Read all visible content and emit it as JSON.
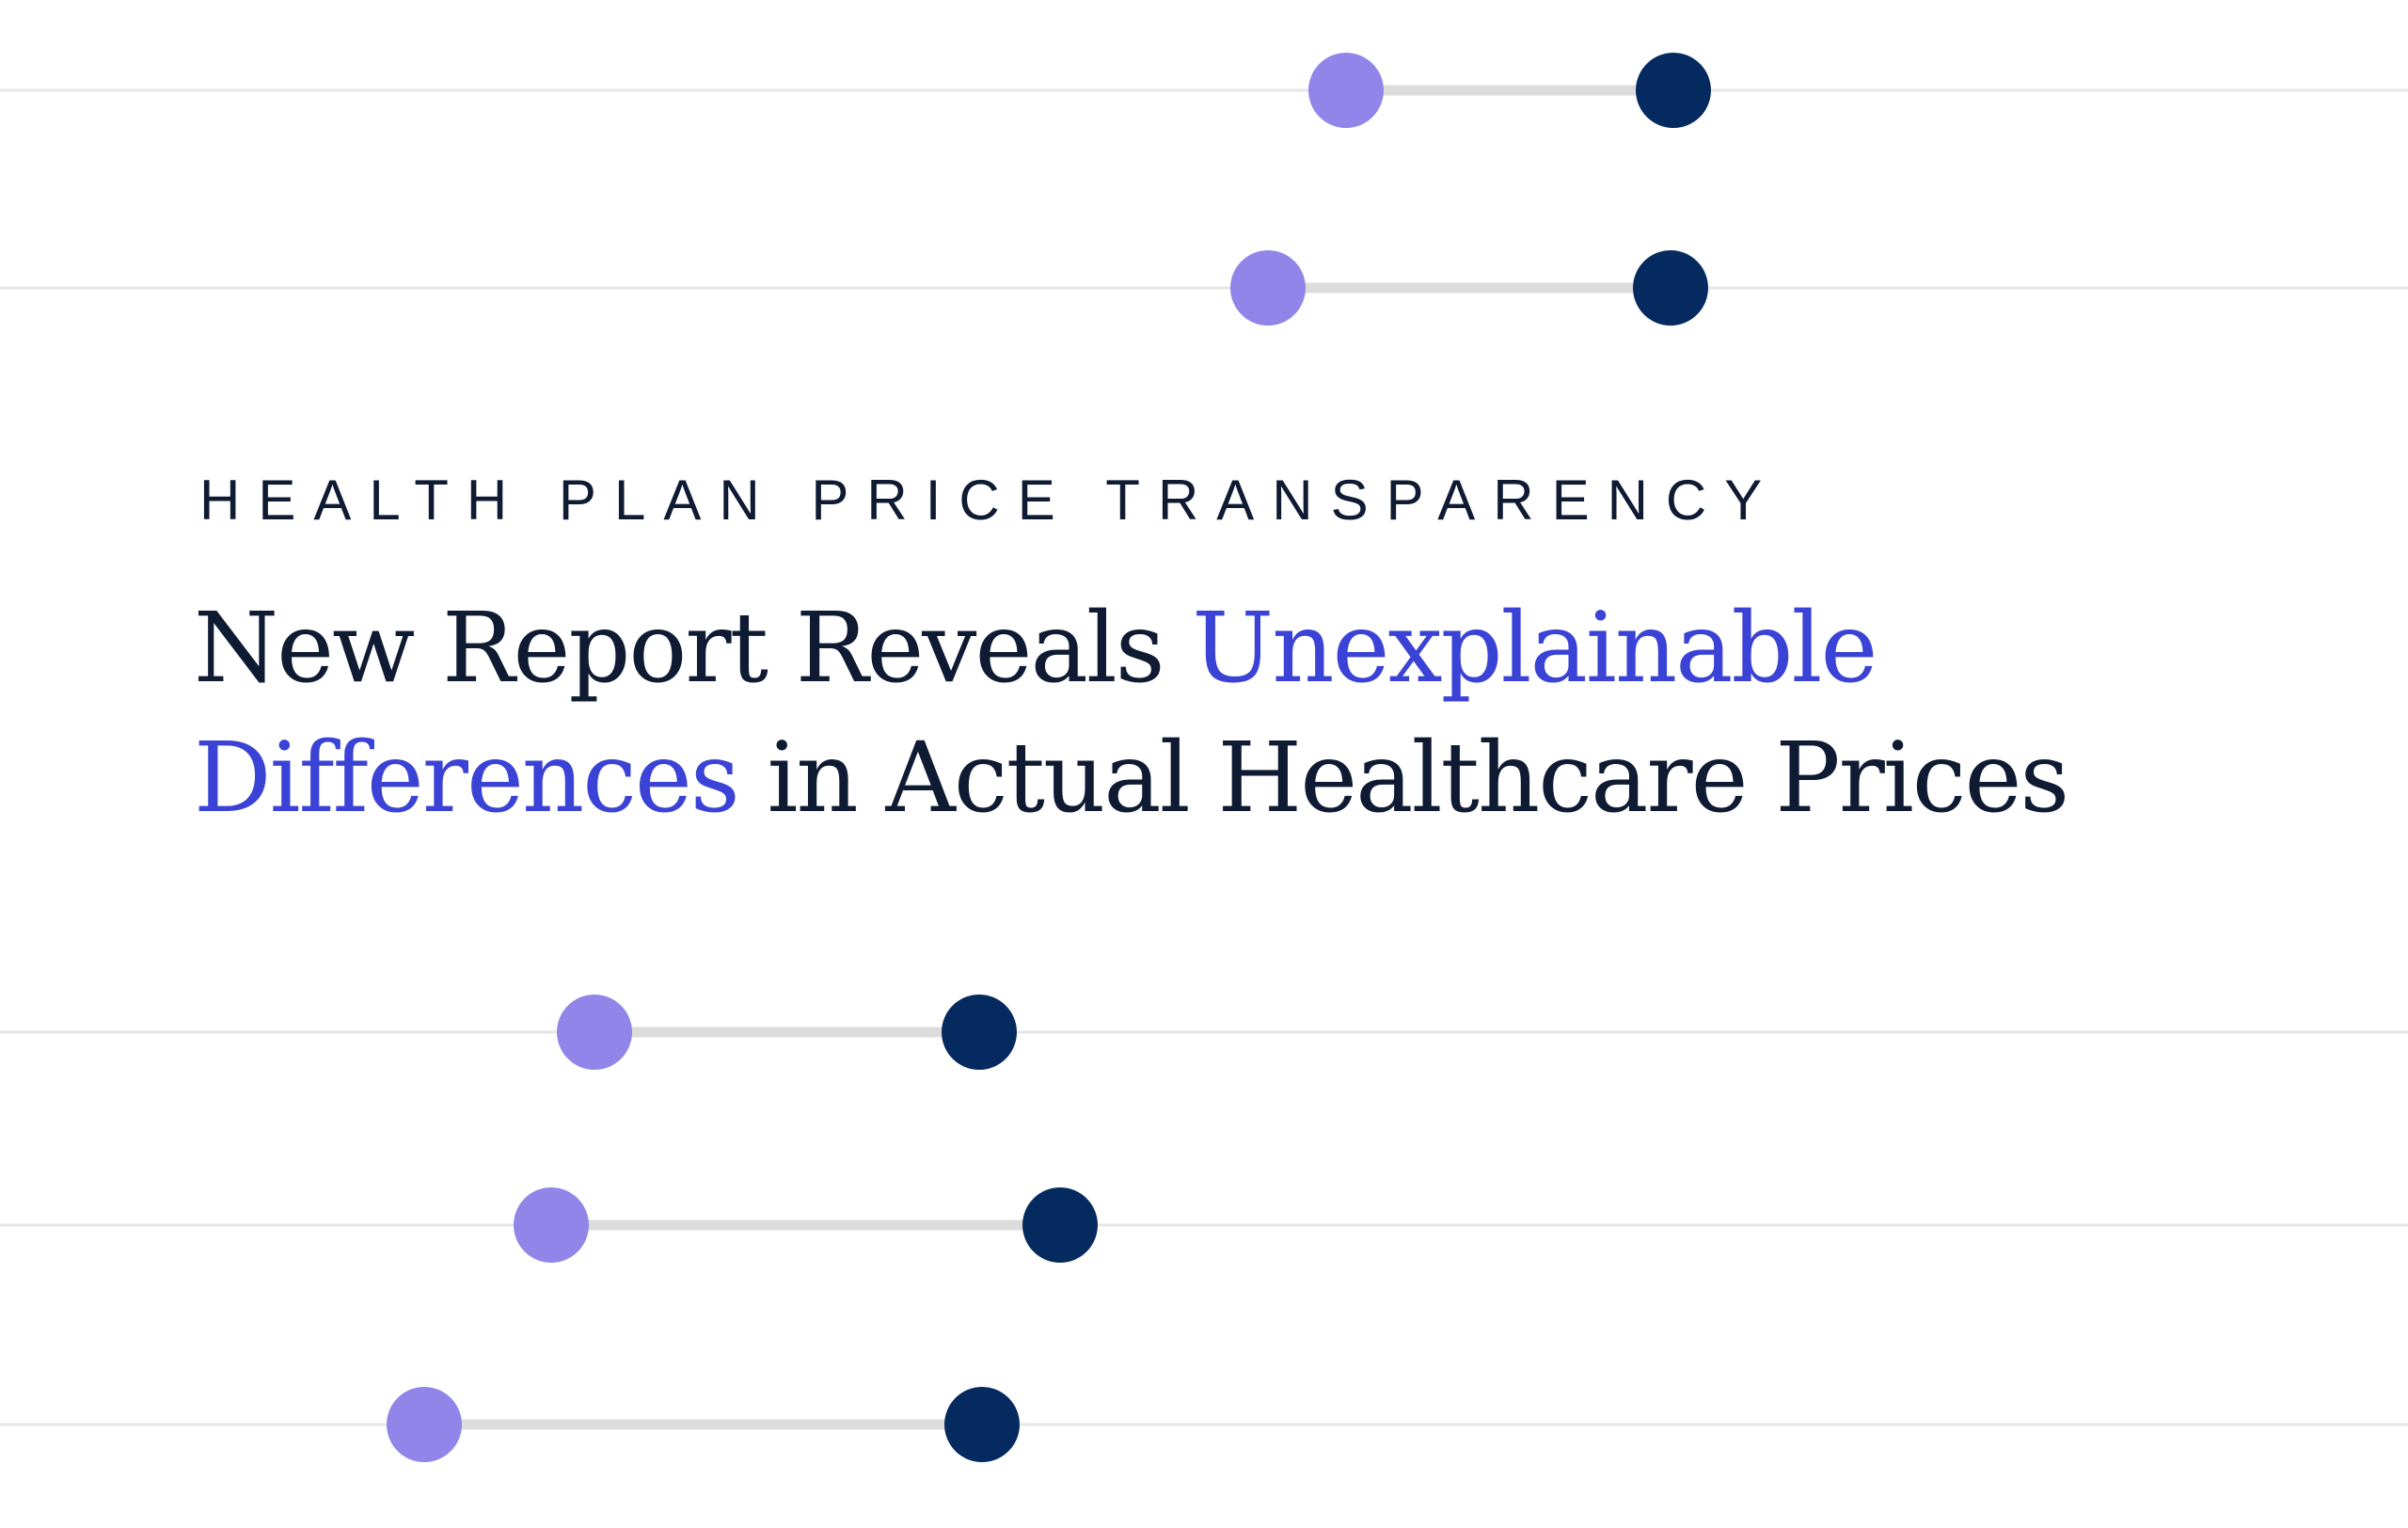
{
  "eyebrow": "HEALTH PLAN PRICE TRANSPARENCY",
  "headline": {
    "line1_plain": "New Report Reveals ",
    "line1_accent": "Unexplainable",
    "line2_accent": "Differences",
    "line2_plain": " in Actual Healthcare Prices"
  },
  "colors": {
    "background": "#ffffff",
    "text": "#0f1b33",
    "accent": "#3b43d6",
    "dot_low": "#9185ea",
    "dot_high": "#052a5f",
    "connector": "#dcdcdc",
    "gridline": "#e6e6e6"
  }
}
